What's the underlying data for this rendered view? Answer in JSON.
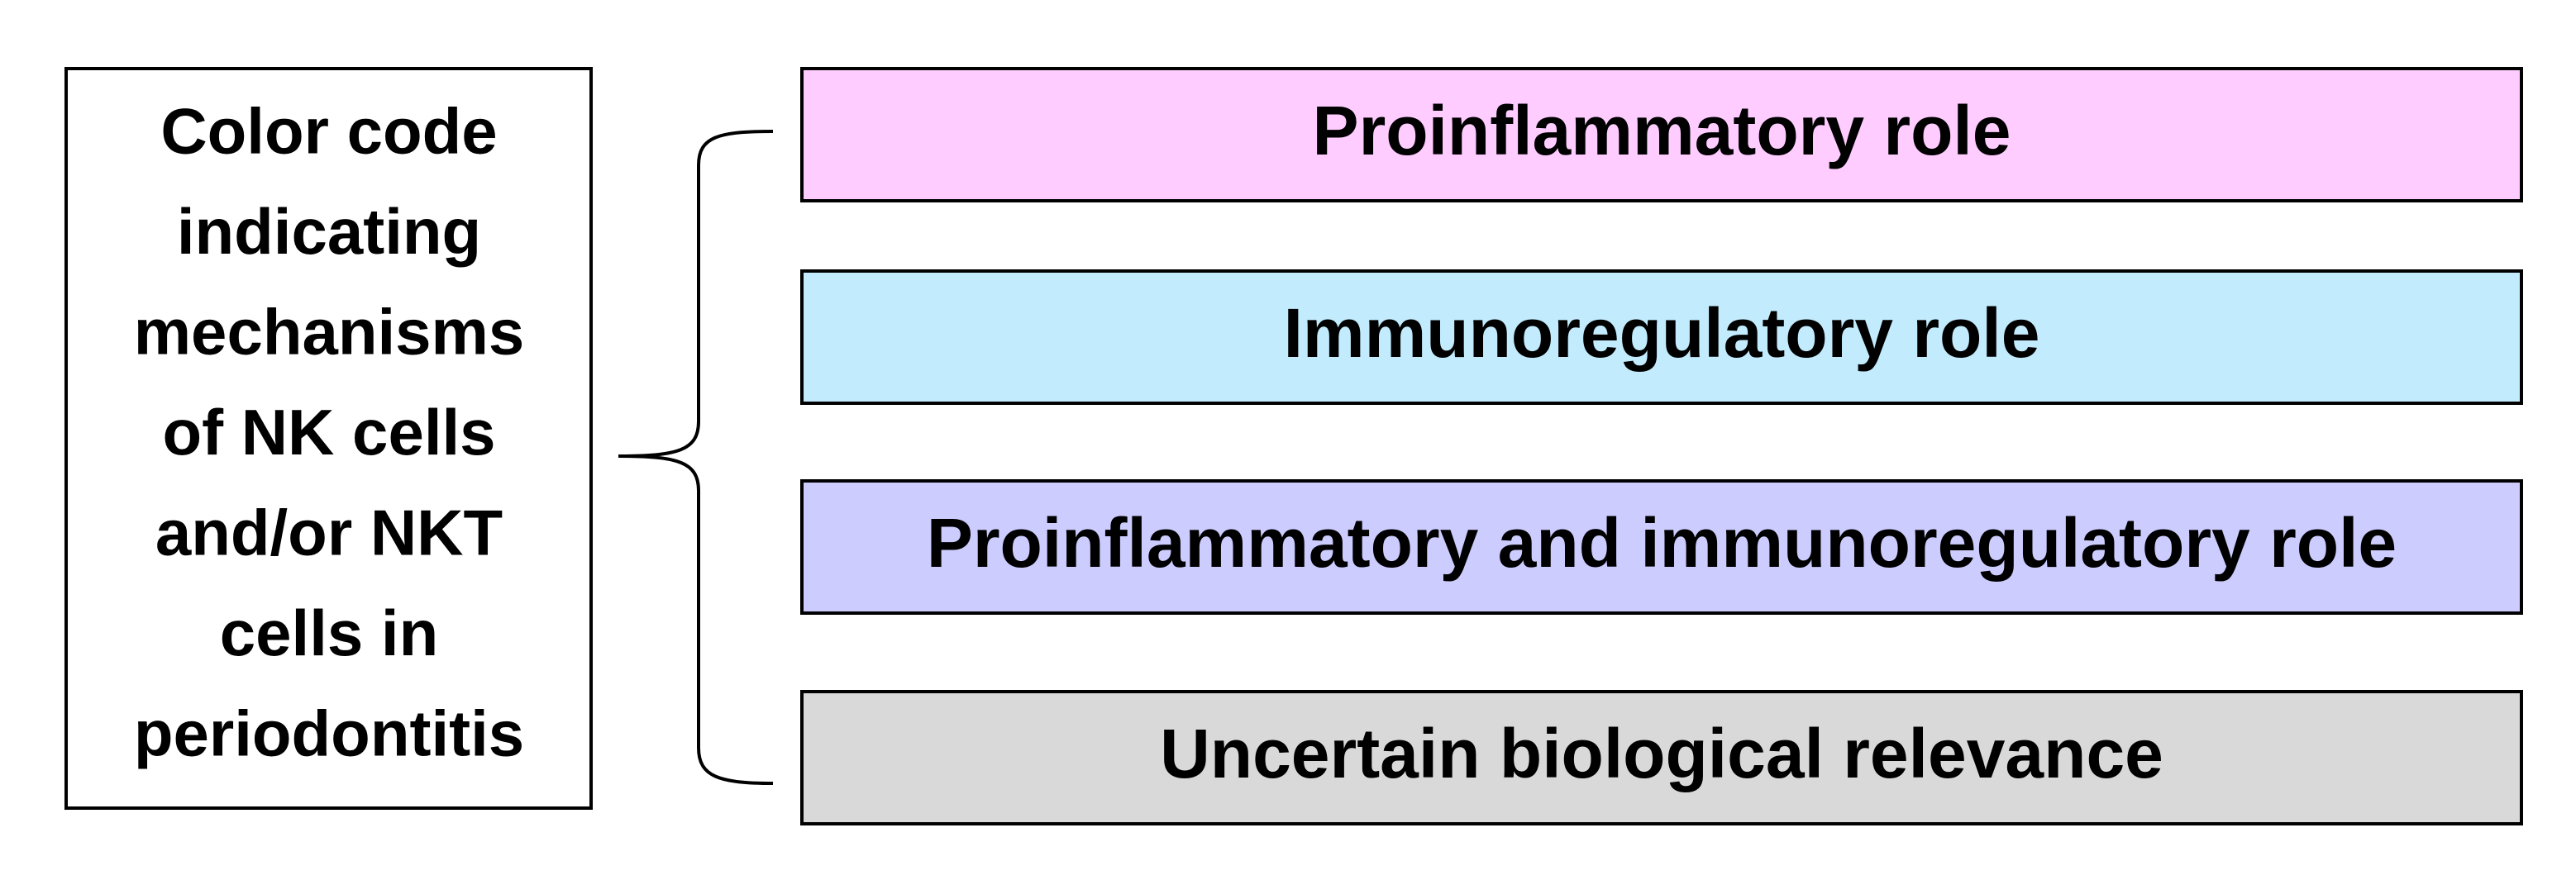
{
  "legend_box": {
    "lines": [
      "Color code",
      "indicating",
      "mechanisms",
      "of NK cells",
      "and/or NKT",
      "cells in",
      "periodontitis"
    ]
  },
  "items": [
    {
      "label": "Proinflammatory role",
      "color": "#ffccff"
    },
    {
      "label": "Immunoregulatory role",
      "color": "#c2ecfd"
    },
    {
      "label": "Proinflammatory and immunoregulatory role",
      "color": "#ccccff"
    },
    {
      "label": "Uncertain biological relevance",
      "color": "#d9d9d9"
    }
  ]
}
